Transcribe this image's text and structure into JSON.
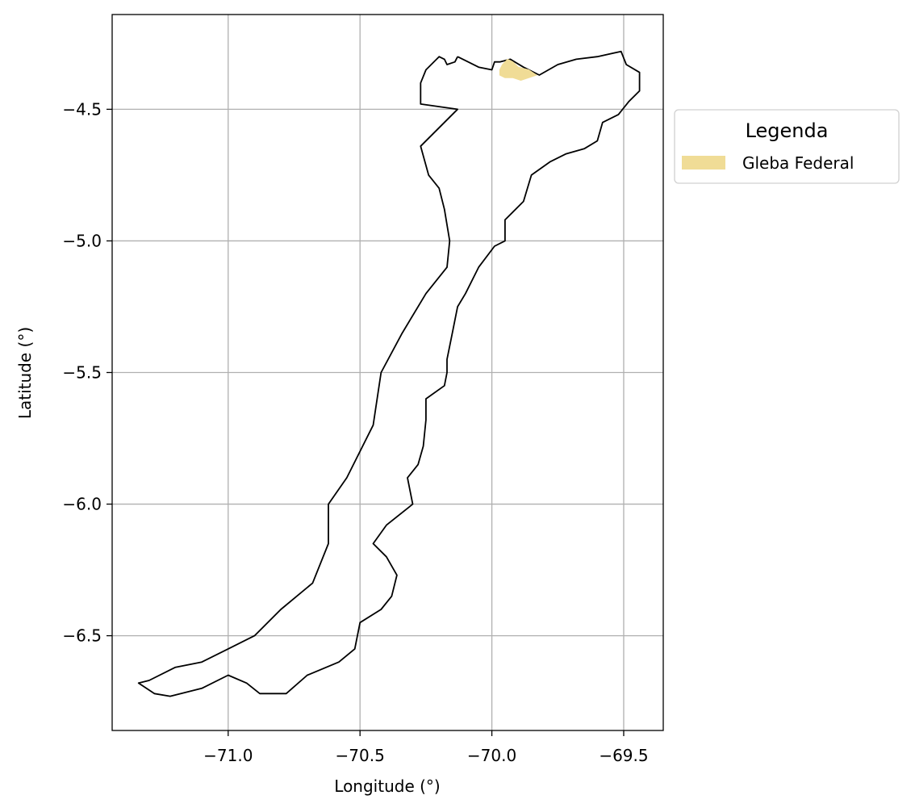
{
  "chart_data": {
    "type": "map",
    "xlabel": "Longitude (°)",
    "ylabel": "Latitude (°)",
    "xlim": [
      -71.44,
      -69.35
    ],
    "ylim": [
      -6.86,
      -4.14
    ],
    "x_ticks": [
      -71.0,
      -70.5,
      -70.0,
      -69.5
    ],
    "x_tick_labels": [
      "−71.0",
      "−70.5",
      "−70.0",
      "−69.5"
    ],
    "y_ticks": [
      -4.5,
      -5.0,
      -5.5,
      -6.0,
      -6.5
    ],
    "y_tick_labels": [
      "−4.5",
      "−5.0",
      "−5.5",
      "−6.0",
      "−6.5"
    ],
    "grid": true,
    "legend": {
      "title": "Legenda",
      "placement": "outside-right-top",
      "entries": [
        {
          "label": "Gleba Federal",
          "color": "#f0dc96"
        }
      ]
    },
    "layers": [
      {
        "name": "boundary",
        "edgecolor": "#000000",
        "facecolor": "none",
        "coords": [
          [
            -70.13,
            -4.3
          ],
          [
            -70.14,
            -4.32
          ],
          [
            -70.17,
            -4.33
          ],
          [
            -70.18,
            -4.31
          ],
          [
            -70.2,
            -4.3
          ],
          [
            -70.25,
            -4.35
          ],
          [
            -70.27,
            -4.4
          ],
          [
            -70.27,
            -4.48
          ],
          [
            -70.13,
            -4.5
          ],
          [
            -70.27,
            -4.64
          ],
          [
            -70.24,
            -4.75
          ],
          [
            -70.2,
            -4.8
          ],
          [
            -70.18,
            -4.88
          ],
          [
            -70.16,
            -5.0
          ],
          [
            -70.17,
            -5.1
          ],
          [
            -70.25,
            -5.2
          ],
          [
            -70.34,
            -5.35
          ],
          [
            -70.42,
            -5.5
          ],
          [
            -70.45,
            -5.7
          ],
          [
            -70.55,
            -5.9
          ],
          [
            -70.62,
            -6.0
          ],
          [
            -70.62,
            -6.15
          ],
          [
            -70.68,
            -6.3
          ],
          [
            -70.8,
            -6.4
          ],
          [
            -70.9,
            -6.5
          ],
          [
            -71.0,
            -6.55
          ],
          [
            -71.1,
            -6.6
          ],
          [
            -71.2,
            -6.62
          ],
          [
            -71.3,
            -6.67
          ],
          [
            -71.34,
            -6.68
          ],
          [
            -71.28,
            -6.72
          ],
          [
            -71.22,
            -6.73
          ],
          [
            -71.1,
            -6.7
          ],
          [
            -71.0,
            -6.65
          ],
          [
            -70.93,
            -6.68
          ],
          [
            -70.88,
            -6.72
          ],
          [
            -70.78,
            -6.72
          ],
          [
            -70.7,
            -6.65
          ],
          [
            -70.58,
            -6.6
          ],
          [
            -70.52,
            -6.55
          ],
          [
            -70.5,
            -6.45
          ],
          [
            -70.42,
            -6.4
          ],
          [
            -70.38,
            -6.35
          ],
          [
            -70.36,
            -6.27
          ],
          [
            -70.4,
            -6.2
          ],
          [
            -70.45,
            -6.15
          ],
          [
            -70.4,
            -6.08
          ],
          [
            -70.3,
            -6.0
          ],
          [
            -70.32,
            -5.9
          ],
          [
            -70.28,
            -5.85
          ],
          [
            -70.26,
            -5.78
          ],
          [
            -70.25,
            -5.68
          ],
          [
            -70.25,
            -5.6
          ],
          [
            -70.18,
            -5.55
          ],
          [
            -70.17,
            -5.5
          ],
          [
            -70.17,
            -5.45
          ],
          [
            -70.15,
            -5.35
          ],
          [
            -70.13,
            -5.25
          ],
          [
            -70.1,
            -5.2
          ],
          [
            -70.05,
            -5.1
          ],
          [
            -69.99,
            -5.02
          ],
          [
            -69.95,
            -5.0
          ],
          [
            -69.95,
            -4.92
          ],
          [
            -69.88,
            -4.85
          ],
          [
            -69.85,
            -4.75
          ],
          [
            -69.78,
            -4.7
          ],
          [
            -69.72,
            -4.67
          ],
          [
            -69.65,
            -4.65
          ],
          [
            -69.6,
            -4.62
          ],
          [
            -69.58,
            -4.55
          ],
          [
            -69.52,
            -4.52
          ],
          [
            -69.48,
            -4.47
          ],
          [
            -69.44,
            -4.43
          ],
          [
            -69.44,
            -4.36
          ],
          [
            -69.49,
            -4.33
          ],
          [
            -69.51,
            -4.28
          ],
          [
            -69.6,
            -4.3
          ],
          [
            -69.68,
            -4.31
          ],
          [
            -69.75,
            -4.33
          ],
          [
            -69.82,
            -4.37
          ],
          [
            -69.88,
            -4.34
          ],
          [
            -69.93,
            -4.31
          ],
          [
            -69.97,
            -4.32
          ],
          [
            -69.99,
            -4.32
          ],
          [
            -70.0,
            -4.35
          ],
          [
            -70.05,
            -4.34
          ],
          [
            -70.09,
            -4.32
          ],
          [
            -70.13,
            -4.3
          ]
        ]
      },
      {
        "name": "inner-line",
        "edgecolor": "#000000",
        "facecolor": "none",
        "coords": [
          [
            -70.13,
            -4.5
          ],
          [
            -70.27,
            -4.64
          ]
        ]
      },
      {
        "name": "Gleba Federal",
        "edgecolor": "#f0dc96",
        "facecolor": "#f0dc96",
        "coords": [
          [
            -69.97,
            -4.35
          ],
          [
            -69.96,
            -4.33
          ],
          [
            -69.94,
            -4.31
          ],
          [
            -69.92,
            -4.32
          ],
          [
            -69.9,
            -4.34
          ],
          [
            -69.86,
            -4.35
          ],
          [
            -69.83,
            -4.37
          ],
          [
            -69.86,
            -4.38
          ],
          [
            -69.89,
            -4.39
          ],
          [
            -69.92,
            -4.38
          ],
          [
            -69.95,
            -4.38
          ],
          [
            -69.97,
            -4.37
          ]
        ]
      }
    ]
  }
}
